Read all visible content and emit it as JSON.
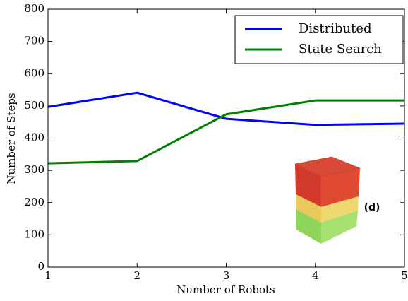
{
  "chart_data": {
    "type": "line",
    "x": [
      1,
      2,
      3,
      4,
      5
    ],
    "series": [
      {
        "name": "Distributed",
        "color": "#0000ff",
        "values": [
          497,
          541,
          460,
          441,
          445
        ]
      },
      {
        "name": "State Search",
        "color": "#008000",
        "values": [
          322,
          329,
          474,
          517,
          517
        ]
      }
    ],
    "xlabel": "Number of Robots",
    "ylabel": "Number of Steps",
    "xlim": [
      1,
      5
    ],
    "xticks": [
      1,
      2,
      3,
      4,
      5
    ],
    "ylim": [
      0,
      800
    ],
    "yticks": [
      0,
      100,
      200,
      300,
      400,
      500,
      600,
      700,
      800
    ],
    "legend": "upper right",
    "annotation": "(d)"
  }
}
